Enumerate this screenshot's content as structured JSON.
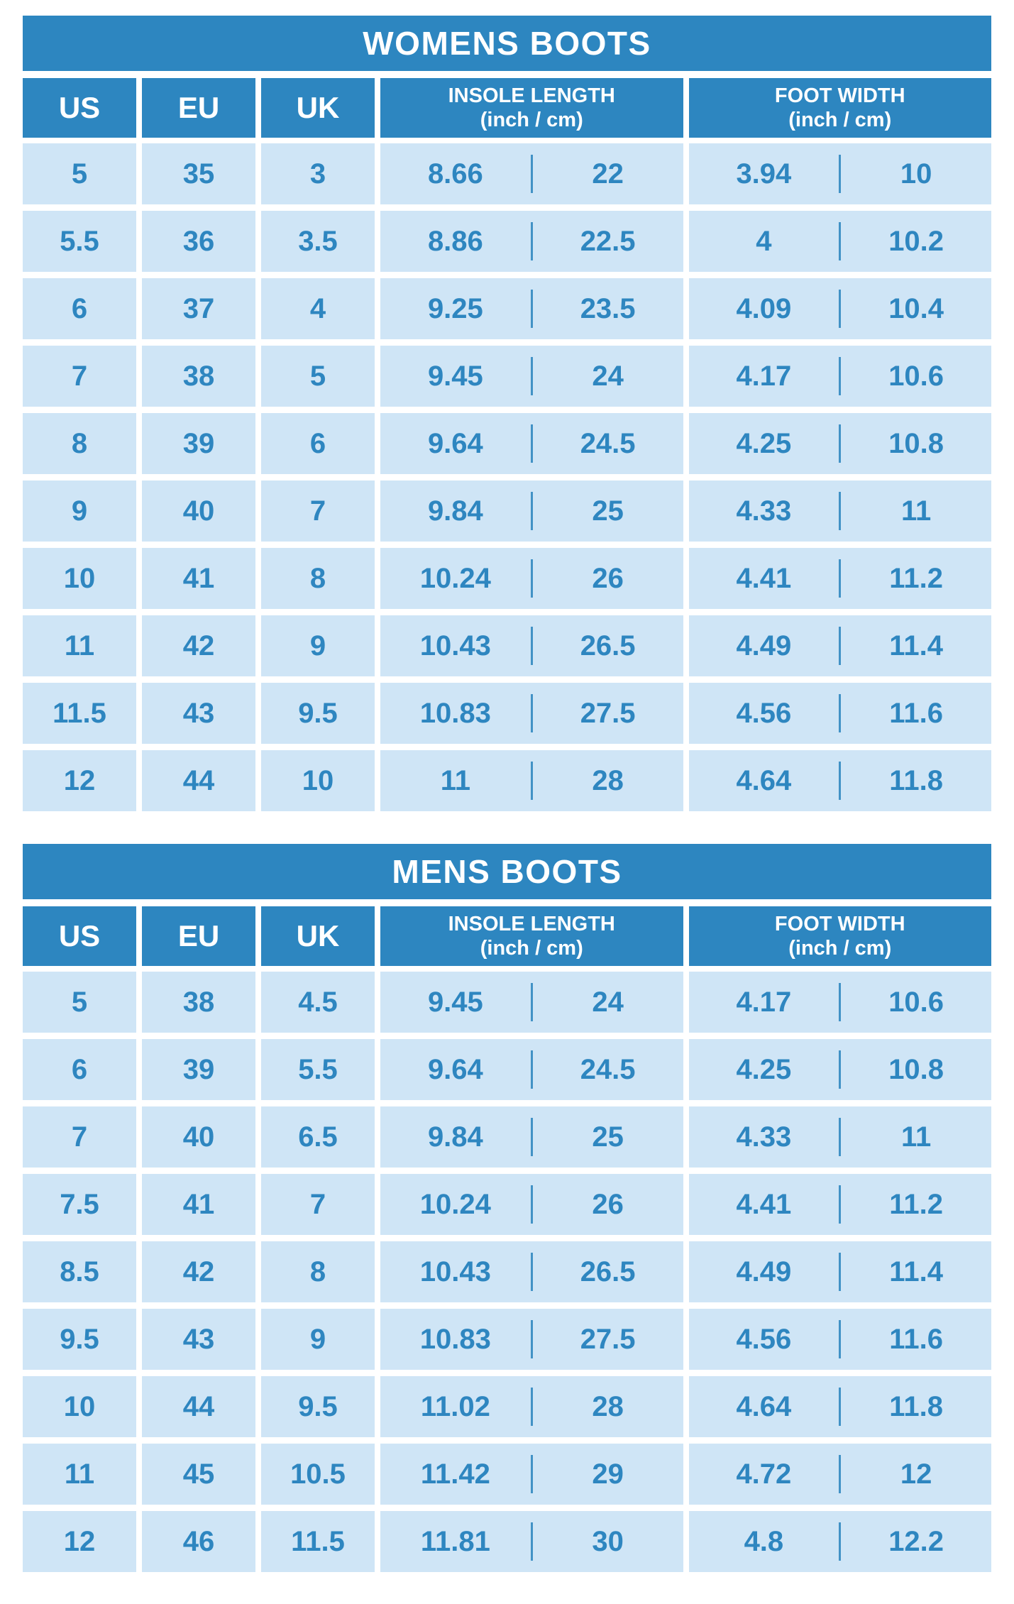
{
  "colors": {
    "header_background": "#2d86c0",
    "cell_background": "#cfe5f6",
    "cell_text": "#2e86c0",
    "divider_line": "#4292c6",
    "header_text": "#ffffff",
    "page_background": "#ffffff"
  },
  "chart_data": [
    {
      "type": "table",
      "title": "WOMENS BOOTS",
      "columns": {
        "us": "US",
        "eu": "EU",
        "uk": "UK",
        "insole_line1": "INSOLE LENGTH",
        "insole_line2": "(inch / cm)",
        "foot_line1": "FOOT WIDTH",
        "foot_line2": "(inch / cm)"
      },
      "rows": [
        {
          "us": "5",
          "eu": "35",
          "uk": "3",
          "insole_in": "8.66",
          "insole_cm": "22",
          "width_in": "3.94",
          "width_cm": "10"
        },
        {
          "us": "5.5",
          "eu": "36",
          "uk": "3.5",
          "insole_in": "8.86",
          "insole_cm": "22.5",
          "width_in": "4",
          "width_cm": "10.2"
        },
        {
          "us": "6",
          "eu": "37",
          "uk": "4",
          "insole_in": "9.25",
          "insole_cm": "23.5",
          "width_in": "4.09",
          "width_cm": "10.4"
        },
        {
          "us": "7",
          "eu": "38",
          "uk": "5",
          "insole_in": "9.45",
          "insole_cm": "24",
          "width_in": "4.17",
          "width_cm": "10.6"
        },
        {
          "us": "8",
          "eu": "39",
          "uk": "6",
          "insole_in": "9.64",
          "insole_cm": "24.5",
          "width_in": "4.25",
          "width_cm": "10.8"
        },
        {
          "us": "9",
          "eu": "40",
          "uk": "7",
          "insole_in": "9.84",
          "insole_cm": "25",
          "width_in": "4.33",
          "width_cm": "11"
        },
        {
          "us": "10",
          "eu": "41",
          "uk": "8",
          "insole_in": "10.24",
          "insole_cm": "26",
          "width_in": "4.41",
          "width_cm": "11.2"
        },
        {
          "us": "11",
          "eu": "42",
          "uk": "9",
          "insole_in": "10.43",
          "insole_cm": "26.5",
          "width_in": "4.49",
          "width_cm": "11.4"
        },
        {
          "us": "11.5",
          "eu": "43",
          "uk": "9.5",
          "insole_in": "10.83",
          "insole_cm": "27.5",
          "width_in": "4.56",
          "width_cm": "11.6"
        },
        {
          "us": "12",
          "eu": "44",
          "uk": "10",
          "insole_in": "11",
          "insole_cm": "28",
          "width_in": "4.64",
          "width_cm": "11.8"
        }
      ]
    },
    {
      "type": "table",
      "title": "MENS BOOTS",
      "columns": {
        "us": "US",
        "eu": "EU",
        "uk": "UK",
        "insole_line1": "INSOLE LENGTH",
        "insole_line2": "(inch / cm)",
        "foot_line1": "FOOT WIDTH",
        "foot_line2": "(inch / cm)"
      },
      "rows": [
        {
          "us": "5",
          "eu": "38",
          "uk": "4.5",
          "insole_in": "9.45",
          "insole_cm": "24",
          "width_in": "4.17",
          "width_cm": "10.6"
        },
        {
          "us": "6",
          "eu": "39",
          "uk": "5.5",
          "insole_in": "9.64",
          "insole_cm": "24.5",
          "width_in": "4.25",
          "width_cm": "10.8"
        },
        {
          "us": "7",
          "eu": "40",
          "uk": "6.5",
          "insole_in": "9.84",
          "insole_cm": "25",
          "width_in": "4.33",
          "width_cm": "11"
        },
        {
          "us": "7.5",
          "eu": "41",
          "uk": "7",
          "insole_in": "10.24",
          "insole_cm": "26",
          "width_in": "4.41",
          "width_cm": "11.2"
        },
        {
          "us": "8.5",
          "eu": "42",
          "uk": "8",
          "insole_in": "10.43",
          "insole_cm": "26.5",
          "width_in": "4.49",
          "width_cm": "11.4"
        },
        {
          "us": "9.5",
          "eu": "43",
          "uk": "9",
          "insole_in": "10.83",
          "insole_cm": "27.5",
          "width_in": "4.56",
          "width_cm": "11.6"
        },
        {
          "us": "10",
          "eu": "44",
          "uk": "9.5",
          "insole_in": "11.02",
          "insole_cm": "28",
          "width_in": "4.64",
          "width_cm": "11.8"
        },
        {
          "us": "11",
          "eu": "45",
          "uk": "10.5",
          "insole_in": "11.42",
          "insole_cm": "29",
          "width_in": "4.72",
          "width_cm": "12"
        },
        {
          "us": "12",
          "eu": "46",
          "uk": "11.5",
          "insole_in": "11.81",
          "insole_cm": "30",
          "width_in": "4.8",
          "width_cm": "12.2"
        }
      ]
    }
  ]
}
